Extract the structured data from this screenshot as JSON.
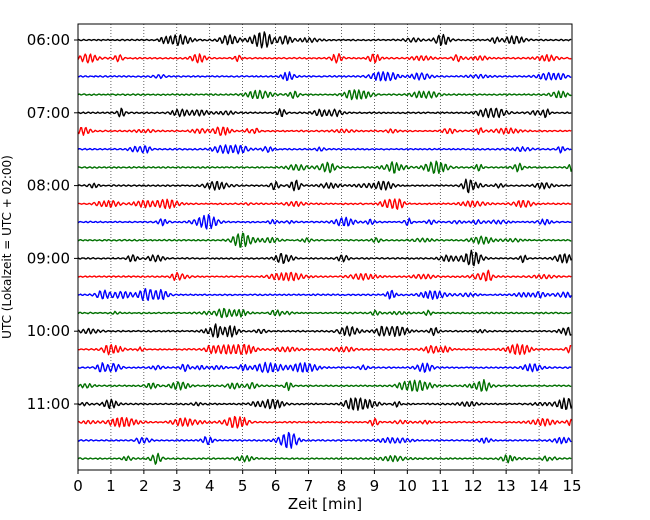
{
  "chart_data": {
    "type": "line",
    "title": "",
    "xlabel": "Zeit  [min]",
    "ylabel": "UTC (Lokalzeit = UTC + 02:00)",
    "xlim": [
      0,
      15
    ],
    "x_ticks": [
      "0",
      "1",
      "2",
      "3",
      "4",
      "5",
      "6",
      "7",
      "8",
      "9",
      "10",
      "11",
      "12",
      "13",
      "14",
      "15"
    ],
    "y_ticks": [
      "06:00",
      "07:00",
      "08:00",
      "09:00",
      "10:00",
      "11:00"
    ],
    "traces_per_hour": 4,
    "trace_minutes": 15,
    "trace_start": "06:00",
    "trace_count": 24,
    "colors": [
      "#000000",
      "#ff0000",
      "#0000ff",
      "#007000"
    ],
    "grid": "vertical dotted"
  }
}
